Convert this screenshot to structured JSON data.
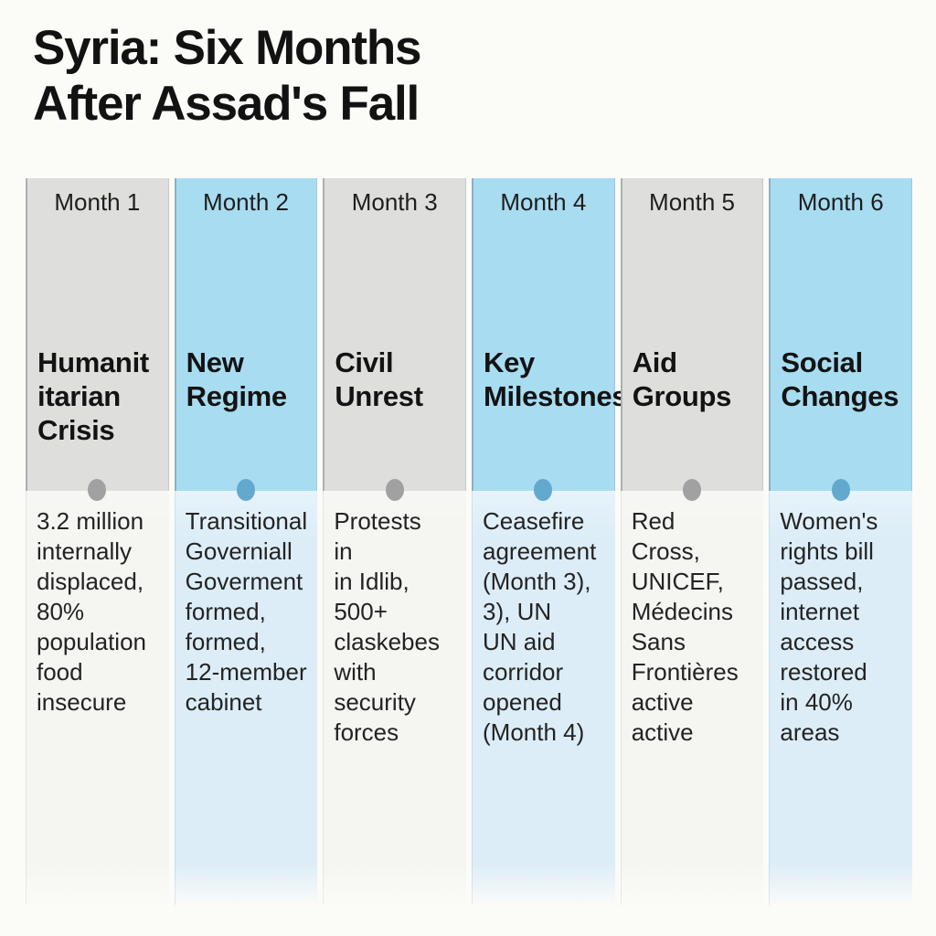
{
  "title": {
    "line1": "Syria: Six Months",
    "line2": "After Assad's Fall"
  },
  "columns": [
    {
      "month_label": "Month 1",
      "theme": "gray",
      "heading": "Humanit\nitarian\nCrisis",
      "body": "3.2 million\ninternally\ndisplaced,\n80%\npopulation\nfood\ninsecure"
    },
    {
      "month_label": "Month 2",
      "theme": "blue",
      "heading": "New\nRegime",
      "body": "Transitional\nGoverniall\nGoverment\nformed,\nformed,\n12-member\ncabinet"
    },
    {
      "month_label": "Month 3",
      "theme": "gray",
      "heading": "Civil\nUnrest",
      "body": "Protests\nin\nin Idlib,\n500+\nclaskebes\nwith\nsecurity\nforces"
    },
    {
      "month_label": "Month 4",
      "theme": "blue",
      "heading": "Key\nMilestones",
      "body": "Ceasefire\nagreement\n(Month 3),\n3), UN\nUN aid\ncorridor\nopened\n(Month 4)"
    },
    {
      "month_label": "Month 5",
      "theme": "gray",
      "heading": "Aid\nGroups",
      "body": "Red\nCross,\nUNICEF,\nMédecins\nSans\nFrontières\nactive\nactive"
    },
    {
      "month_label": "Month 6",
      "theme": "blue",
      "heading": "Social\nChanges",
      "body": "Women's\nrights bill\npassed,\ninternet\naccess\nrestored\nin 40%\nareas"
    }
  ],
  "colors": {
    "header_gray": "#dedfdd",
    "header_blue": "#a8dcf1",
    "body_gray": "#f5f6f2",
    "body_blue": "#dcedf7",
    "dot_gray": "#a1a1a1",
    "dot_blue": "#63a9cd",
    "title_text": "#121212",
    "body_text": "#232323"
  }
}
